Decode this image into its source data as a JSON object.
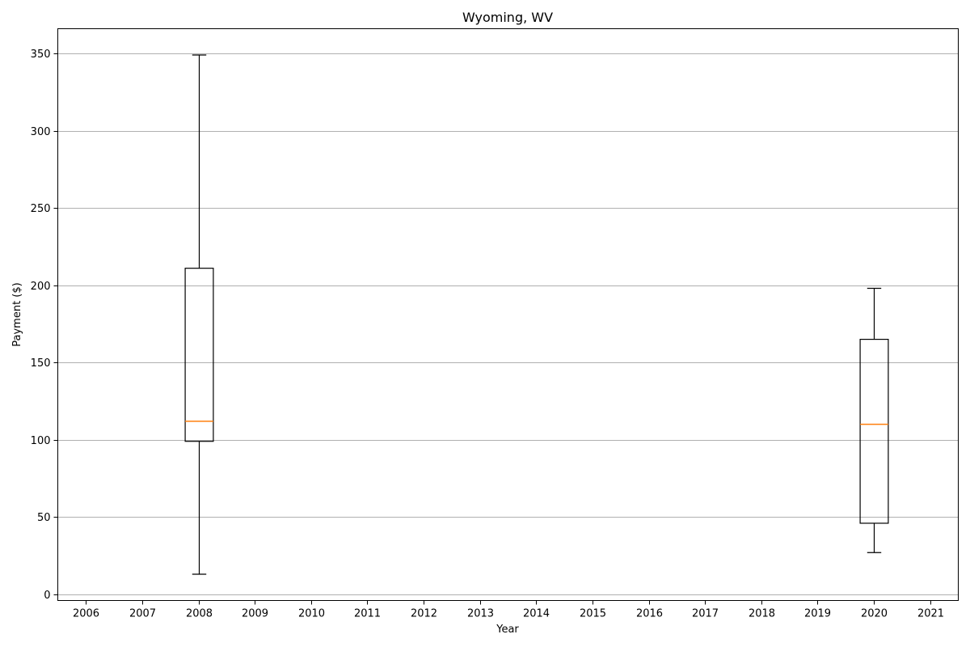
{
  "chart_data": {
    "type": "box",
    "title": "Wyoming, WV",
    "xlabel": "Year",
    "ylabel": "Payment ($)",
    "categories": [
      "2006",
      "2007",
      "2008",
      "2009",
      "2010",
      "2011",
      "2012",
      "2013",
      "2014",
      "2015",
      "2016",
      "2017",
      "2018",
      "2019",
      "2020",
      "2021"
    ],
    "ylim": [
      -4,
      366
    ],
    "yticks": [
      0,
      50,
      100,
      150,
      200,
      250,
      300,
      350
    ],
    "grid": "horizontal",
    "colors": {
      "box": "#000000",
      "median": "#ff7f0e",
      "grid": "#b0b0b0"
    },
    "boxes": [
      {
        "category": "2008",
        "whisker_low": 13,
        "q1": 99,
        "median": 112,
        "q3": 211,
        "whisker_high": 349
      },
      {
        "category": "2020",
        "whisker_low": 27,
        "q1": 46,
        "median": 110,
        "q3": 165,
        "whisker_high": 198
      }
    ]
  }
}
